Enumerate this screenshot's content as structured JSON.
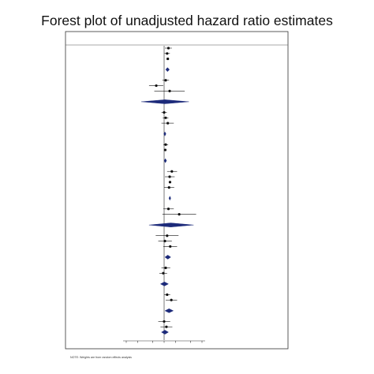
{
  "chart_data": {
    "type": "forest",
    "title": "Forest plot of unadjusted hazard ratio estimates",
    "xaxis": {
      "scale": "log",
      "range": [
        0.1,
        10
      ],
      "reference_line": 1
    },
    "footnote": "NOTE: Weights are from random effects analysis",
    "rows": [
      {
        "kind": "study",
        "est": 1.3,
        "lo": 1.05,
        "hi": 1.6,
        "w": 1.2
      },
      {
        "kind": "study",
        "est": 1.2,
        "lo": 1.02,
        "hi": 1.42,
        "w": 1.4
      },
      {
        "kind": "study",
        "est": 1.25,
        "lo": 1.18,
        "hi": 1.33,
        "w": 1.8
      },
      {
        "kind": "group"
      },
      {
        "kind": "subtotal",
        "est": 1.23,
        "lo": 1.1,
        "hi": 1.38
      },
      {
        "kind": "blank"
      },
      {
        "kind": "study",
        "est": 1.1,
        "lo": 0.9,
        "hi": 1.35,
        "w": 1.2
      },
      {
        "kind": "study",
        "est": 0.62,
        "lo": 0.4,
        "hi": 0.95,
        "w": 1.0
      },
      {
        "kind": "study",
        "est": 1.4,
        "lo": 0.55,
        "hi": 3.5,
        "w": 1.1
      },
      {
        "kind": "group"
      },
      {
        "kind": "subtotal",
        "est": 1.05,
        "lo": 0.25,
        "hi": 4.5
      },
      {
        "kind": "blank"
      },
      {
        "kind": "study",
        "est": 1.0,
        "lo": 0.85,
        "hi": 1.18,
        "w": 1.0
      },
      {
        "kind": "study",
        "est": 1.1,
        "lo": 0.92,
        "hi": 1.3,
        "w": 1.0
      },
      {
        "kind": "study",
        "est": 1.25,
        "lo": 0.85,
        "hi": 1.8,
        "w": 0.9
      },
      {
        "kind": "group"
      },
      {
        "kind": "subtotal",
        "est": 1.05,
        "lo": 0.98,
        "hi": 1.12
      },
      {
        "kind": "blank"
      },
      {
        "kind": "study",
        "est": 1.1,
        "lo": 0.95,
        "hi": 1.28,
        "w": 1.0
      },
      {
        "kind": "study",
        "est": 1.07,
        "lo": 0.99,
        "hi": 1.16,
        "w": 1.6
      },
      {
        "kind": "group"
      },
      {
        "kind": "subtotal",
        "est": 1.08,
        "lo": 1.0,
        "hi": 1.16
      },
      {
        "kind": "blank"
      },
      {
        "kind": "study",
        "est": 1.6,
        "lo": 1.2,
        "hi": 2.2,
        "w": 1.0
      },
      {
        "kind": "study",
        "est": 1.4,
        "lo": 1.05,
        "hi": 1.9,
        "w": 1.1
      },
      {
        "kind": "study",
        "est": 1.43,
        "lo": 1.35,
        "hi": 1.5,
        "w": 1.7
      },
      {
        "kind": "study",
        "est": 1.35,
        "lo": 1.0,
        "hi": 1.85,
        "w": 1.0
      },
      {
        "kind": "group"
      },
      {
        "kind": "subtotal",
        "est": 1.42,
        "lo": 1.34,
        "hi": 1.5
      },
      {
        "kind": "blank"
      },
      {
        "kind": "study",
        "est": 1.3,
        "lo": 0.95,
        "hi": 1.8,
        "w": 1.2
      },
      {
        "kind": "study",
        "est": 2.5,
        "lo": 0.9,
        "hi": 7.0,
        "w": 0.9
      },
      {
        "kind": "group"
      },
      {
        "kind": "subtotal",
        "est": 1.5,
        "lo": 0.4,
        "hi": 6.0
      },
      {
        "kind": "blank"
      },
      {
        "kind": "study",
        "est": 1.2,
        "lo": 0.6,
        "hi": 2.4,
        "w": 1.0
      },
      {
        "kind": "study",
        "est": 1.05,
        "lo": 0.7,
        "hi": 1.6,
        "w": 1.0
      },
      {
        "kind": "study",
        "est": 1.45,
        "lo": 0.95,
        "hi": 2.2,
        "w": 1.0
      },
      {
        "kind": "group"
      },
      {
        "kind": "subtotal",
        "est": 1.25,
        "lo": 1.05,
        "hi": 1.5
      },
      {
        "kind": "blank"
      },
      {
        "kind": "study",
        "est": 1.1,
        "lo": 0.85,
        "hi": 1.45,
        "w": 1.0
      },
      {
        "kind": "study",
        "est": 0.95,
        "lo": 0.75,
        "hi": 1.2,
        "w": 1.0
      },
      {
        "kind": "group"
      },
      {
        "kind": "subtotal",
        "est": 1.02,
        "lo": 0.8,
        "hi": 1.3
      },
      {
        "kind": "blank"
      },
      {
        "kind": "study",
        "est": 1.2,
        "lo": 1.0,
        "hi": 1.45,
        "w": 1.2
      },
      {
        "kind": "study",
        "est": 1.55,
        "lo": 1.1,
        "hi": 2.2,
        "w": 1.0
      },
      {
        "kind": "group"
      },
      {
        "kind": "subtotal",
        "est": 1.35,
        "lo": 1.05,
        "hi": 1.75
      },
      {
        "kind": "blank"
      },
      {
        "kind": "study",
        "est": 1.0,
        "lo": 0.7,
        "hi": 1.45,
        "w": 1.0
      },
      {
        "kind": "study",
        "est": 1.15,
        "lo": 0.8,
        "hi": 1.65,
        "w": 1.0
      },
      {
        "kind": "subtotal",
        "est": 1.05,
        "lo": 0.85,
        "hi": 1.3
      }
    ]
  }
}
